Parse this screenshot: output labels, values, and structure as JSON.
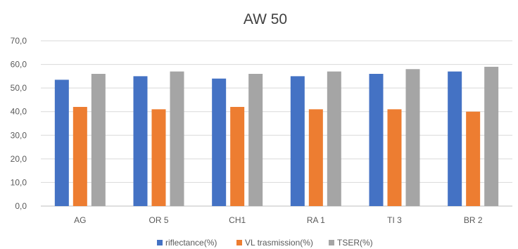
{
  "chart_data": {
    "type": "bar",
    "title": "AW 50",
    "categories": [
      "AG",
      "OR 5",
      "CH1",
      "RA 1",
      "TI 3",
      "BR 2"
    ],
    "series": [
      {
        "name": "riflectance(%)",
        "values": [
          53.5,
          55.0,
          54.0,
          55.0,
          56.0,
          57.0
        ]
      },
      {
        "name": "VL trasmission(%)",
        "values": [
          42.0,
          41.0,
          42.0,
          41.0,
          41.0,
          40.0
        ]
      },
      {
        "name": "TSER(%)",
        "values": [
          56.0,
          57.0,
          56.0,
          57.0,
          58.0,
          59.0
        ]
      }
    ],
    "y_ticks": [
      "0,0",
      "10,0",
      "20,0",
      "30,0",
      "40,0",
      "50,0",
      "60,0",
      "70,0"
    ],
    "ylim": [
      0,
      70
    ],
    "grid": true,
    "legend_position": "bottom",
    "xlabel": "",
    "ylabel": "",
    "colors": [
      "#4472c4",
      "#ed7d31",
      "#a5a5a5"
    ]
  }
}
